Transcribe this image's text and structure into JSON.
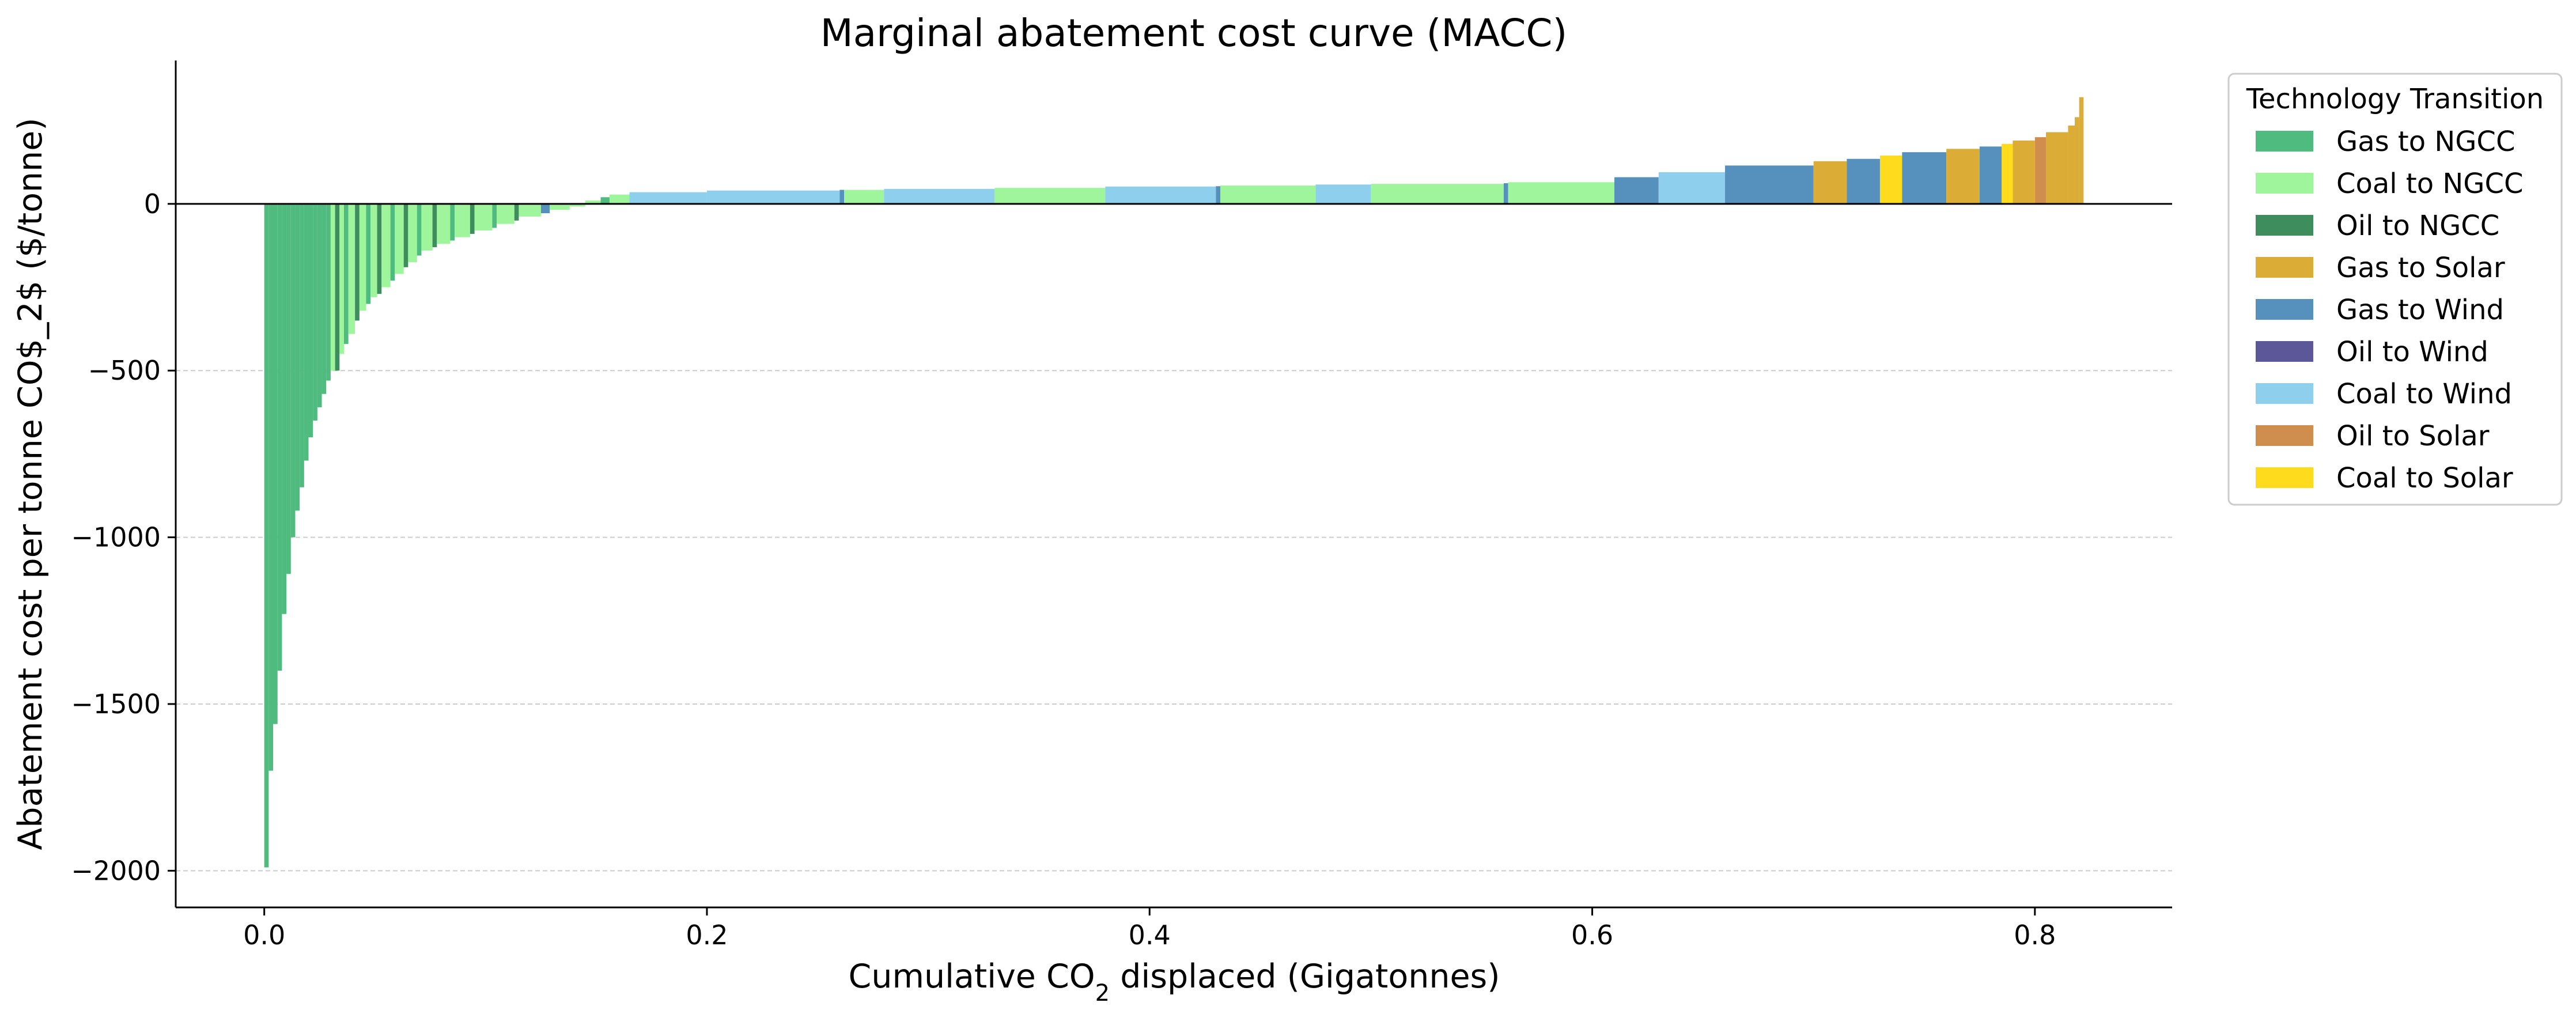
{
  "chart_data": {
    "type": "bar",
    "title": "Marginal abatement cost curve (MACC)",
    "xlabel_main": "Cumulative CO",
    "xlabel_sub": "2",
    "xlabel_tail": " displaced (Gigatonnes)",
    "ylabel": "Abatement cost per tonne CO$_2$ ($/tonne)",
    "xlim": [
      -0.04,
      0.862
    ],
    "ylim": [
      -2110,
      430
    ],
    "x_ticks": [
      0.0,
      0.2,
      0.4,
      0.6,
      0.8
    ],
    "x_tick_labels": [
      "0.0",
      "0.2",
      "0.4",
      "0.6",
      "0.8"
    ],
    "y_ticks": [
      0,
      -500,
      -1000,
      -1500,
      -2000
    ],
    "y_tick_labels": [
      "0",
      "−500",
      "−1000",
      "−1500",
      "−2000"
    ],
    "grid": "horizontal dashed",
    "legend": {
      "title": "Technology Transition",
      "placement": "outside right",
      "entries": [
        {
          "label": "Gas to NGCC",
          "color": "#4fbb7e"
        },
        {
          "label": "Coal to NGCC",
          "color": "#9ff59c"
        },
        {
          "label": "Oil to NGCC",
          "color": "#3d8d5d"
        },
        {
          "label": "Gas to Solar",
          "color": "#dbad36"
        },
        {
          "label": "Gas to Wind",
          "color": "#5690bd"
        },
        {
          "label": "Oil to Wind",
          "color": "#5b5799"
        },
        {
          "label": "Coal to Wind",
          "color": "#8dcfed"
        },
        {
          "label": "Oil to Solar",
          "color": "#cf8d4e"
        },
        {
          "label": "Coal to Solar",
          "color": "#fedb1d"
        }
      ]
    },
    "segments": [
      {
        "x0": 0.0,
        "x1": 0.002,
        "y": -1990,
        "tech": "Gas to NGCC"
      },
      {
        "x0": 0.002,
        "x1": 0.004,
        "y": -1700,
        "tech": "Gas to NGCC"
      },
      {
        "x0": 0.004,
        "x1": 0.006,
        "y": -1560,
        "tech": "Gas to NGCC"
      },
      {
        "x0": 0.006,
        "x1": 0.008,
        "y": -1400,
        "tech": "Gas to NGCC"
      },
      {
        "x0": 0.008,
        "x1": 0.01,
        "y": -1230,
        "tech": "Gas to NGCC"
      },
      {
        "x0": 0.01,
        "x1": 0.012,
        "y": -1110,
        "tech": "Gas to NGCC"
      },
      {
        "x0": 0.012,
        "x1": 0.014,
        "y": -1000,
        "tech": "Gas to NGCC"
      },
      {
        "x0": 0.014,
        "x1": 0.016,
        "y": -920,
        "tech": "Gas to NGCC"
      },
      {
        "x0": 0.016,
        "x1": 0.018,
        "y": -850,
        "tech": "Gas to NGCC"
      },
      {
        "x0": 0.018,
        "x1": 0.02,
        "y": -770,
        "tech": "Gas to NGCC"
      },
      {
        "x0": 0.02,
        "x1": 0.022,
        "y": -700,
        "tech": "Gas to NGCC"
      },
      {
        "x0": 0.022,
        "x1": 0.024,
        "y": -650,
        "tech": "Gas to NGCC"
      },
      {
        "x0": 0.024,
        "x1": 0.026,
        "y": -610,
        "tech": "Gas to NGCC"
      },
      {
        "x0": 0.026,
        "x1": 0.028,
        "y": -570,
        "tech": "Gas to NGCC"
      },
      {
        "x0": 0.028,
        "x1": 0.03,
        "y": -530,
        "tech": "Gas to NGCC"
      },
      {
        "x0": 0.03,
        "x1": 0.032,
        "y": -500,
        "tech": "Coal to NGCC"
      },
      {
        "x0": 0.032,
        "x1": 0.034,
        "y": -500,
        "tech": "Oil to NGCC"
      },
      {
        "x0": 0.034,
        "x1": 0.036,
        "y": -450,
        "tech": "Coal to NGCC"
      },
      {
        "x0": 0.036,
        "x1": 0.038,
        "y": -420,
        "tech": "Gas to NGCC"
      },
      {
        "x0": 0.038,
        "x1": 0.041,
        "y": -390,
        "tech": "Coal to NGCC"
      },
      {
        "x0": 0.041,
        "x1": 0.043,
        "y": -350,
        "tech": "Oil to NGCC"
      },
      {
        "x0": 0.043,
        "x1": 0.046,
        "y": -320,
        "tech": "Coal to NGCC"
      },
      {
        "x0": 0.046,
        "x1": 0.048,
        "y": -300,
        "tech": "Gas to NGCC"
      },
      {
        "x0": 0.048,
        "x1": 0.051,
        "y": -280,
        "tech": "Coal to NGCC"
      },
      {
        "x0": 0.051,
        "x1": 0.053,
        "y": -270,
        "tech": "Oil to NGCC"
      },
      {
        "x0": 0.053,
        "x1": 0.057,
        "y": -250,
        "tech": "Coal to NGCC"
      },
      {
        "x0": 0.057,
        "x1": 0.059,
        "y": -230,
        "tech": "Gas to NGCC"
      },
      {
        "x0": 0.059,
        "x1": 0.063,
        "y": -210,
        "tech": "Coal to NGCC"
      },
      {
        "x0": 0.063,
        "x1": 0.065,
        "y": -190,
        "tech": "Oil to NGCC"
      },
      {
        "x0": 0.065,
        "x1": 0.069,
        "y": -175,
        "tech": "Coal to NGCC"
      },
      {
        "x0": 0.069,
        "x1": 0.071,
        "y": -155,
        "tech": "Gas to NGCC"
      },
      {
        "x0": 0.071,
        "x1": 0.076,
        "y": -140,
        "tech": "Coal to NGCC"
      },
      {
        "x0": 0.076,
        "x1": 0.078,
        "y": -130,
        "tech": "Oil to NGCC"
      },
      {
        "x0": 0.078,
        "x1": 0.084,
        "y": -120,
        "tech": "Coal to NGCC"
      },
      {
        "x0": 0.084,
        "x1": 0.086,
        "y": -110,
        "tech": "Gas to NGCC"
      },
      {
        "x0": 0.086,
        "x1": 0.093,
        "y": -100,
        "tech": "Coal to NGCC"
      },
      {
        "x0": 0.093,
        "x1": 0.095,
        "y": -90,
        "tech": "Oil to NGCC"
      },
      {
        "x0": 0.095,
        "x1": 0.103,
        "y": -80,
        "tech": "Coal to NGCC"
      },
      {
        "x0": 0.103,
        "x1": 0.105,
        "y": -72,
        "tech": "Gas to NGCC"
      },
      {
        "x0": 0.105,
        "x1": 0.113,
        "y": -60,
        "tech": "Coal to NGCC"
      },
      {
        "x0": 0.113,
        "x1": 0.115,
        "y": -50,
        "tech": "Oil to NGCC"
      },
      {
        "x0": 0.115,
        "x1": 0.125,
        "y": -38,
        "tech": "Coal to NGCC"
      },
      {
        "x0": 0.125,
        "x1": 0.129,
        "y": -28,
        "tech": "Gas to Wind"
      },
      {
        "x0": 0.129,
        "x1": 0.138,
        "y": -18,
        "tech": "Coal to NGCC"
      },
      {
        "x0": 0.138,
        "x1": 0.145,
        "y": -8,
        "tech": "Coal to NGCC"
      },
      {
        "x0": 0.145,
        "x1": 0.152,
        "y": 10,
        "tech": "Coal to NGCC"
      },
      {
        "x0": 0.152,
        "x1": 0.156,
        "y": 20,
        "tech": "Gas to NGCC"
      },
      {
        "x0": 0.156,
        "x1": 0.165,
        "y": 28,
        "tech": "Coal to NGCC"
      },
      {
        "x0": 0.165,
        "x1": 0.2,
        "y": 35,
        "tech": "Coal to Wind"
      },
      {
        "x0": 0.2,
        "x1": 0.26,
        "y": 40,
        "tech": "Coal to Wind"
      },
      {
        "x0": 0.26,
        "x1": 0.262,
        "y": 42,
        "tech": "Gas to Wind"
      },
      {
        "x0": 0.262,
        "x1": 0.28,
        "y": 42,
        "tech": "Coal to NGCC"
      },
      {
        "x0": 0.28,
        "x1": 0.33,
        "y": 45,
        "tech": "Coal to Wind"
      },
      {
        "x0": 0.33,
        "x1": 0.38,
        "y": 48,
        "tech": "Coal to NGCC"
      },
      {
        "x0": 0.38,
        "x1": 0.43,
        "y": 52,
        "tech": "Coal to Wind"
      },
      {
        "x0": 0.43,
        "x1": 0.432,
        "y": 53,
        "tech": "Gas to Wind"
      },
      {
        "x0": 0.432,
        "x1": 0.475,
        "y": 55,
        "tech": "Coal to NGCC"
      },
      {
        "x0": 0.475,
        "x1": 0.5,
        "y": 58,
        "tech": "Coal to Wind"
      },
      {
        "x0": 0.5,
        "x1": 0.56,
        "y": 60,
        "tech": "Coal to NGCC"
      },
      {
        "x0": 0.56,
        "x1": 0.562,
        "y": 62,
        "tech": "Gas to Wind"
      },
      {
        "x0": 0.562,
        "x1": 0.61,
        "y": 65,
        "tech": "Coal to NGCC"
      },
      {
        "x0": 0.61,
        "x1": 0.63,
        "y": 80,
        "tech": "Gas to Wind"
      },
      {
        "x0": 0.63,
        "x1": 0.66,
        "y": 95,
        "tech": "Coal to Wind"
      },
      {
        "x0": 0.66,
        "x1": 0.7,
        "y": 115,
        "tech": "Gas to Wind"
      },
      {
        "x0": 0.7,
        "x1": 0.715,
        "y": 128,
        "tech": "Gas to Solar"
      },
      {
        "x0": 0.715,
        "x1": 0.73,
        "y": 135,
        "tech": "Gas to Wind"
      },
      {
        "x0": 0.73,
        "x1": 0.74,
        "y": 145,
        "tech": "Coal to Solar"
      },
      {
        "x0": 0.74,
        "x1": 0.76,
        "y": 155,
        "tech": "Gas to Wind"
      },
      {
        "x0": 0.76,
        "x1": 0.775,
        "y": 165,
        "tech": "Gas to Solar"
      },
      {
        "x0": 0.775,
        "x1": 0.785,
        "y": 172,
        "tech": "Gas to Wind"
      },
      {
        "x0": 0.785,
        "x1": 0.79,
        "y": 180,
        "tech": "Coal to Solar"
      },
      {
        "x0": 0.79,
        "x1": 0.8,
        "y": 190,
        "tech": "Gas to Solar"
      },
      {
        "x0": 0.8,
        "x1": 0.805,
        "y": 200,
        "tech": "Oil to Solar"
      },
      {
        "x0": 0.805,
        "x1": 0.815,
        "y": 215,
        "tech": "Gas to Solar"
      },
      {
        "x0": 0.815,
        "x1": 0.818,
        "y": 235,
        "tech": "Gas to Solar"
      },
      {
        "x0": 0.818,
        "x1": 0.82,
        "y": 260,
        "tech": "Gas to Solar"
      },
      {
        "x0": 0.82,
        "x1": 0.822,
        "y": 320,
        "tech": "Gas to Solar"
      }
    ]
  }
}
